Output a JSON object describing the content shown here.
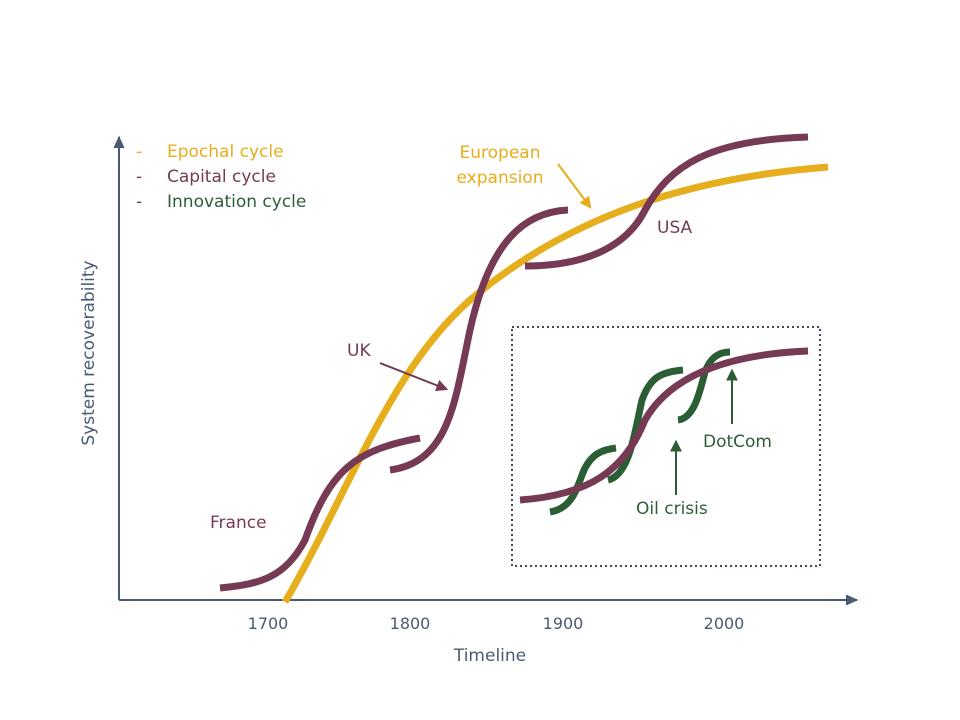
{
  "colors": {
    "epochal": "#e6ae1c",
    "capital": "#763a55",
    "innovation": "#2c5e36",
    "axis": "#4a5a73",
    "inset_border": "#3b4a63"
  },
  "legend": {
    "dash": "-",
    "items": [
      {
        "label": "Epochal cycle",
        "color": "#e6ae1c"
      },
      {
        "label": "Capital cycle",
        "color": "#763a55"
      },
      {
        "label": "Innovation cycle",
        "color": "#2c5e36"
      }
    ]
  },
  "axes": {
    "x_title": "Timeline",
    "y_title": "System recoverability",
    "x_ticks": [
      "1700",
      "1800",
      "1900",
      "2000"
    ]
  },
  "annotations": {
    "european_line1": "European",
    "european_line2": "expansion",
    "usa": "USA",
    "uk": "UK",
    "france": "France",
    "dotcom": "DotCom",
    "oil_crisis": "Oil crisis"
  },
  "inset": {
    "style": "dotted-box"
  }
}
